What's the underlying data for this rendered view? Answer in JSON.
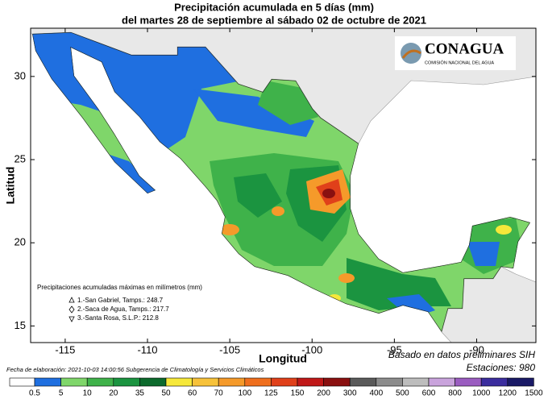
{
  "header": {
    "title": "Precipitación acumulada en 5 días (mm)",
    "subtitle": "del martes 28 de septiembre al sábado 02 de octubre de 2021"
  },
  "logo": {
    "name": "CONAGUA",
    "subtitle": "COMISIÓN NACIONAL DEL AGUA"
  },
  "map": {
    "xlabel": "Longitud",
    "ylabel": "Latitud",
    "xlim": [
      -117.1,
      -86.4
    ],
    "ylim": [
      14,
      32.9
    ],
    "xticks": [
      -115,
      -110,
      -105,
      -100,
      -95,
      -90
    ],
    "yticks": [
      15,
      20,
      25,
      30
    ]
  },
  "stations": {
    "title": "Precipitaciones acumuladas máximas en milímetros (mm)",
    "items": [
      "1.-San Gabriel, Tamps.: 248.7",
      "2.-Saca de Agua, Tamps.: 217.7",
      "3.-Santa Rosa, S.L.P.: 212.8"
    ]
  },
  "footer": {
    "date": "Fecha de elaboración: 2021-10-03 14:00:56 Subgerencia de Climatología y Servicios Climáticos",
    "source": "Basado en datos preliminares SIH",
    "stations": "Estaciones:  980"
  },
  "colorbar": {
    "labels": [
      0.5,
      5,
      10,
      20,
      35,
      50,
      60,
      70,
      100,
      125,
      150,
      200,
      300,
      400,
      500,
      600,
      800,
      1000,
      1200,
      1500
    ],
    "colors": [
      "#ffffff",
      "#1f6fe0",
      "#7fd66a",
      "#3fb24a",
      "#1b9440",
      "#0c6a2c",
      "#f6e83a",
      "#f7c23a",
      "#f59a2a",
      "#ef6f1e",
      "#e0401a",
      "#c01818",
      "#8a1010",
      "#5a5a5a",
      "#8c8c8c",
      "#bdbdbd",
      "#c9a3dc",
      "#9a5cc0",
      "#3b2d9e",
      "#1a1a66"
    ]
  }
}
